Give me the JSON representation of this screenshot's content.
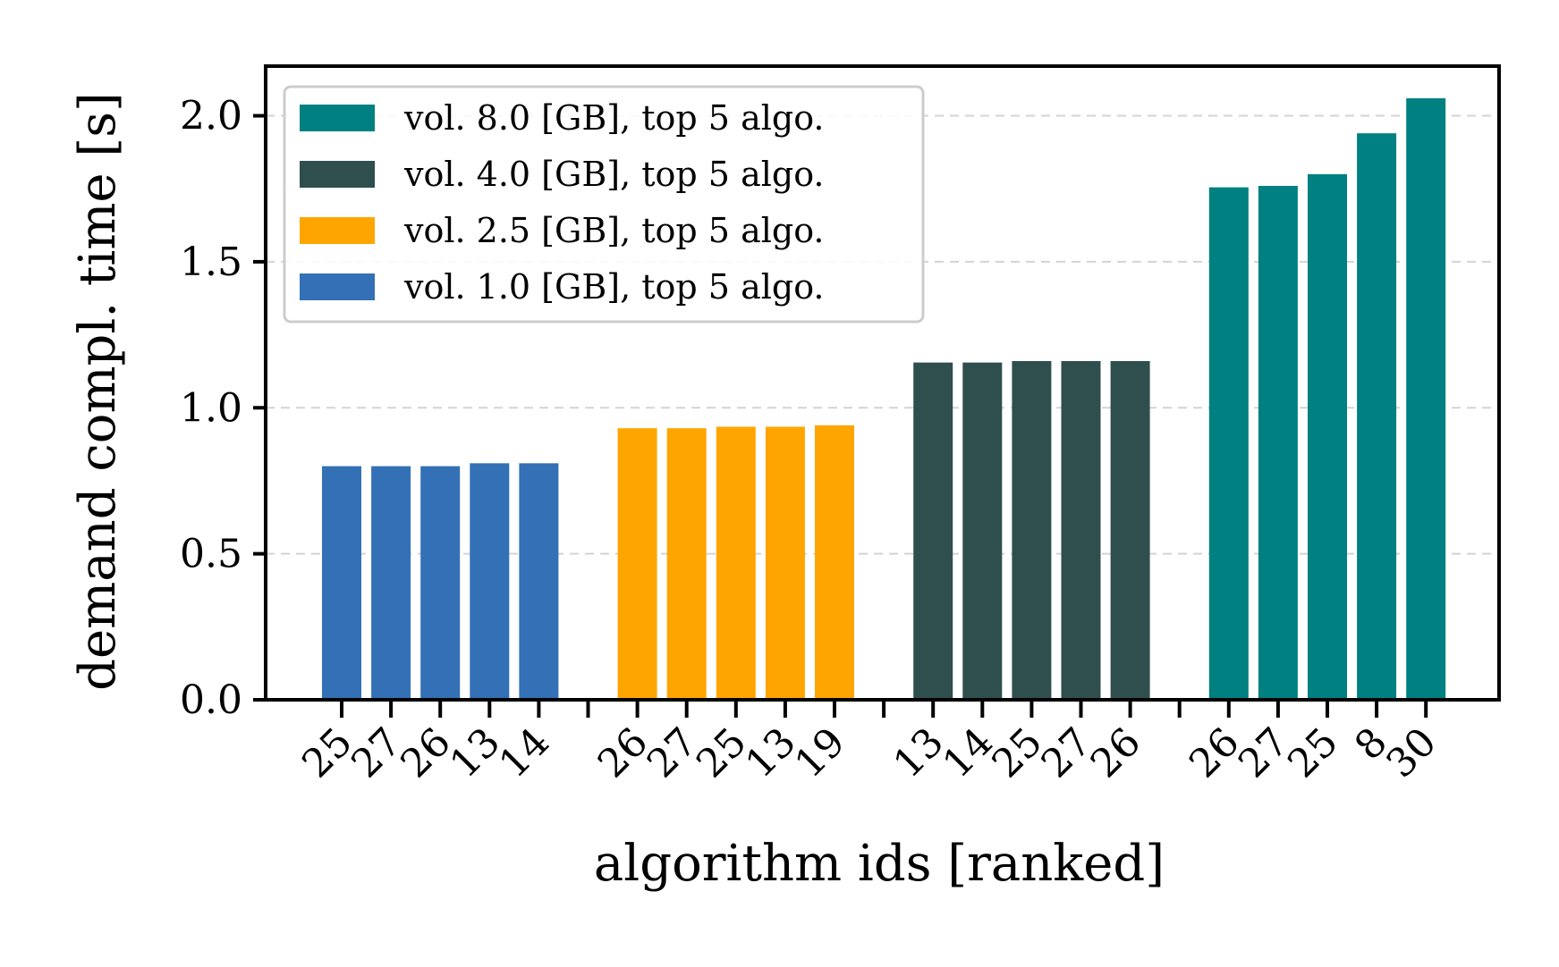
{
  "chart_data": {
    "type": "bar",
    "title": "",
    "xlabel": "algorithm ids [ranked]",
    "ylabel": "demand compl. time [s]",
    "ylim": [
      0,
      2.17
    ],
    "yticks": [
      "0.0",
      "0.5",
      "1.0",
      "1.5",
      "2.0"
    ],
    "grid": "y-dashed",
    "legend_position": "top-left",
    "groups": [
      {
        "name": "vol. 1.0 [GB], top 5 algo.",
        "color": "#3470b5",
        "categories": [
          "25",
          "27",
          "26",
          "13",
          "14"
        ],
        "values": [
          0.8,
          0.8,
          0.8,
          0.81,
          0.81
        ]
      },
      {
        "name": "vol. 2.5 [GB], top 5 algo.",
        "color": "#ffa500",
        "categories": [
          "26",
          "27",
          "25",
          "13",
          "19"
        ],
        "values": [
          0.93,
          0.93,
          0.935,
          0.935,
          0.94
        ]
      },
      {
        "name": "vol. 4.0 [GB], top 5 algo.",
        "color": "#2f4f4f",
        "categories": [
          "13",
          "14",
          "25",
          "27",
          "26"
        ],
        "values": [
          1.155,
          1.155,
          1.16,
          1.16,
          1.16
        ]
      },
      {
        "name": "vol. 8.0 [GB], top 5 algo.",
        "color": "#008080",
        "categories": [
          "26",
          "27",
          "25",
          "8",
          "30"
        ],
        "values": [
          1.755,
          1.76,
          1.8,
          1.94,
          2.06
        ]
      }
    ],
    "legend_order": [
      3,
      2,
      1,
      0
    ]
  }
}
